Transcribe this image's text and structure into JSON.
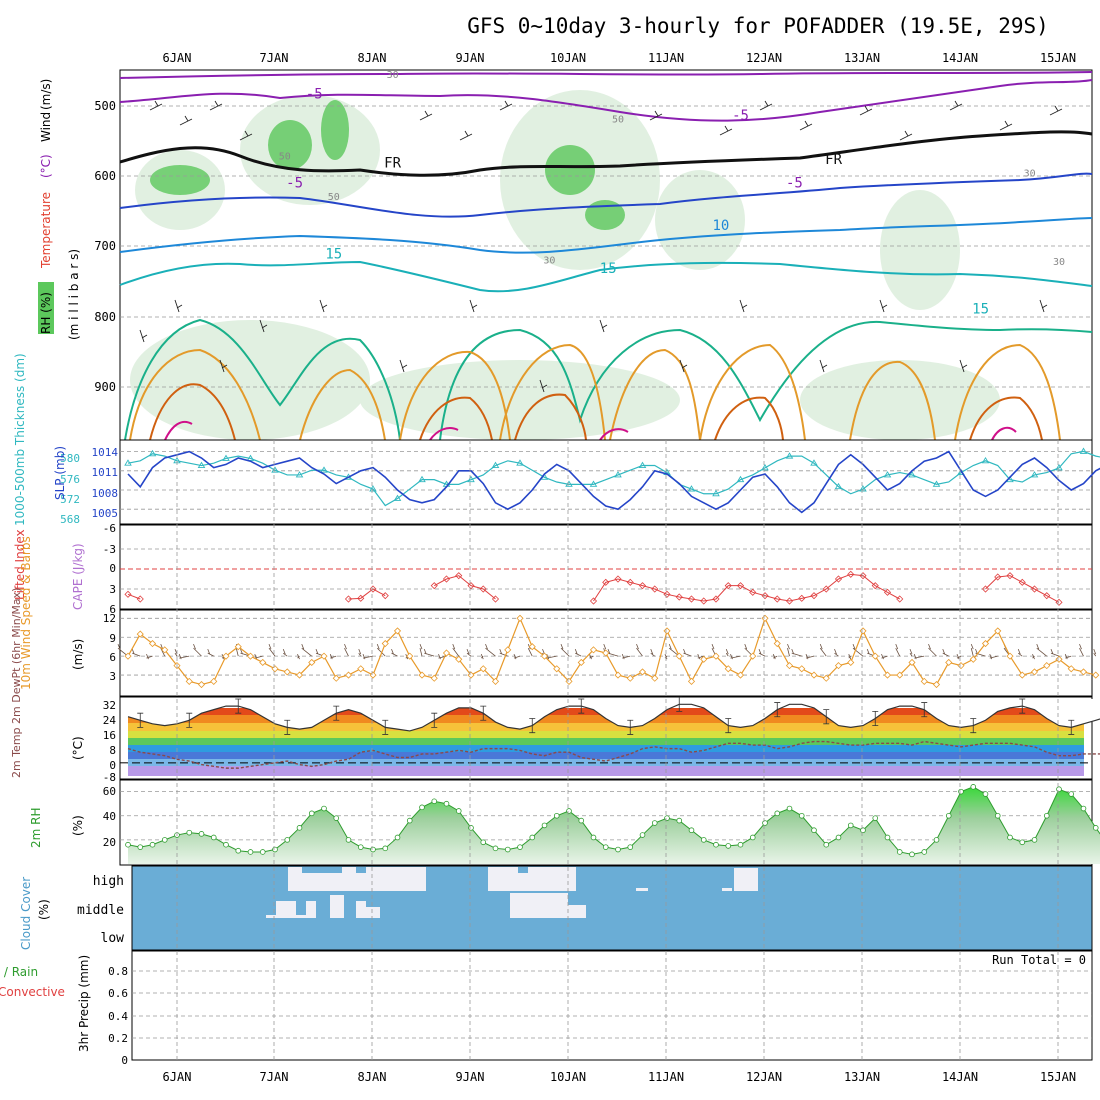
{
  "title": "GFS 0~10day 3-hourly for POFADDER (19.5E, 29S)",
  "days": [
    "6JAN",
    "7JAN",
    "8JAN",
    "9JAN",
    "10JAN",
    "11JAN",
    "12JAN",
    "13JAN",
    "14JAN",
    "15JAN"
  ],
  "colors": {
    "rh_green": "#5cc85c",
    "slp": "#2545c8",
    "thickness": "#30b8c0",
    "lifted": "#e04040",
    "wind_speed": "#e89a2a",
    "rh2m": "#2e9c2e",
    "cloud": "#6aadd6",
    "dewpoint": "#8a4a4a"
  },
  "chart_data": [
    {
      "id": "upper",
      "type": "heatmap",
      "ylabel_parts": [
        "RH (%)",
        "Temperature",
        "(°C)",
        "Wind",
        "(m/s)"
      ],
      "ylabel_millibars": "(m i l l i b a r s)",
      "yticks": [
        500,
        600,
        700,
        800,
        900
      ],
      "ylim": [
        1000,
        450
      ],
      "contour_labels": [
        {
          "text": "-5",
          "day": 1.4,
          "p": 492
        },
        {
          "text": "-5",
          "day": 5.75,
          "p": 524
        },
        {
          "text": "FR",
          "day": 2.2,
          "p": 595
        },
        {
          "text": "FR",
          "day": 6.7,
          "p": 590
        },
        {
          "text": "-5",
          "day": 1.2,
          "p": 625
        },
        {
          "text": "-5",
          "day": 6.3,
          "p": 625
        },
        {
          "text": "10",
          "day": 5.55,
          "p": 688
        },
        {
          "text": "15",
          "day": 1.6,
          "p": 730
        },
        {
          "text": "15",
          "day": 4.4,
          "p": 752
        },
        {
          "text": "15",
          "day": 8.2,
          "p": 812
        },
        {
          "text": "30",
          "day": 2.2,
          "p": 462
        },
        {
          "text": "50",
          "day": 4.5,
          "p": 528
        },
        {
          "text": "50",
          "day": 1.1,
          "p": 583
        },
        {
          "text": "50",
          "day": 1.6,
          "p": 643
        },
        {
          "text": "30",
          "day": 3.8,
          "p": 738
        },
        {
          "text": "30",
          "day": 8.7,
          "p": 608
        },
        {
          "text": "30",
          "day": 9.0,
          "p": 740
        }
      ]
    },
    {
      "id": "slp",
      "type": "line",
      "ylabel_left": "1000-500mb Thickness (dm)",
      "ylabel_right": "SLP (mb)",
      "thickness_ticks": [
        568,
        572,
        576,
        580
      ],
      "slp_ticks": [
        1005,
        1008,
        1011,
        1014
      ],
      "series": [
        {
          "name": "Thickness",
          "values": [
            578.5,
            579,
            580.5,
            580,
            579,
            578.5,
            578,
            578.5,
            579.5,
            580,
            579.5,
            578.5,
            577,
            576,
            576,
            577,
            577,
            576,
            575.5,
            574,
            573,
            569.5,
            571,
            573,
            575,
            575,
            574,
            574,
            575,
            576,
            578,
            579,
            578.5,
            577,
            575.5,
            574.5,
            574,
            574,
            574,
            575,
            576,
            577,
            578,
            578,
            576.5,
            574,
            573,
            572,
            572,
            573,
            575,
            576,
            577.5,
            579,
            580,
            580,
            578.5,
            576,
            573.5,
            572,
            573,
            575,
            576,
            576.5,
            576,
            575,
            574,
            574.5,
            576.5,
            578,
            579,
            578,
            575,
            574.5,
            576,
            576.5,
            577.5,
            580.5,
            581,
            580,
            579.5,
            578.5
          ]
        },
        {
          "name": "SLP",
          "values": [
            1010.5,
            1008.5,
            1011.5,
            1013,
            1013.5,
            1014,
            1013,
            1011.5,
            1012,
            1013,
            1012.5,
            1011.5,
            1012,
            1012.5,
            1013,
            1011.5,
            1010.5,
            1009,
            1010,
            1011,
            1011.5,
            1010,
            1008,
            1006.5,
            1006,
            1006.5,
            1008.5,
            1011,
            1011,
            1009,
            1006,
            1005,
            1006,
            1008,
            1010.5,
            1012,
            1011,
            1009,
            1007,
            1005.5,
            1005,
            1006.5,
            1008.5,
            1011,
            1010.5,
            1009,
            1007,
            1006,
            1005,
            1006,
            1008,
            1010,
            1010.5,
            1008.5,
            1006,
            1004.5,
            1006,
            1009,
            1012,
            1013.5,
            1012,
            1010,
            1008,
            1009,
            1011,
            1012.5,
            1013,
            1014,
            1011,
            1008,
            1007,
            1008,
            1010,
            1012,
            1013,
            1011.5,
            1009.5,
            1008,
            1009,
            1011,
            1012
          ]
        }
      ],
      "ylim_thickness": [
        566,
        583
      ],
      "ylim_slp": [
        1003,
        1015.5
      ]
    },
    {
      "id": "lifted",
      "type": "line",
      "ylabel_left": "Lifted Index",
      "ylabel_right": "CAPE (J/kg)",
      "yticks": [
        -6,
        -3,
        0,
        3,
        6
      ],
      "ylim": [
        -6,
        6
      ],
      "segments": [
        {
          "start_index": 0,
          "values": [
            3.8,
            4.5
          ]
        },
        {
          "start_index": 18,
          "values": [
            4.5,
            4.4,
            3.0,
            4.0
          ]
        },
        {
          "start_index": 25,
          "values": [
            2.5,
            1.5,
            1.0,
            2.5,
            3.0,
            4.5
          ]
        },
        {
          "start_index": 38,
          "values": [
            4.8,
            2.0,
            1.5,
            2.0,
            2.5,
            3.0,
            3.8,
            4.2,
            4.5,
            4.8,
            4.5,
            2.5,
            2.5,
            3.5,
            4.0,
            4.5,
            4.8,
            4.4,
            4.0,
            3.0,
            1.5,
            0.8,
            1.0,
            2.5,
            3.5,
            4.5
          ]
        },
        {
          "start_index": 70,
          "values": [
            3.0,
            1.2,
            1.0,
            2.0,
            3.0,
            4.0,
            5.0
          ]
        }
      ]
    },
    {
      "id": "wind10m",
      "type": "line",
      "ylabel_left": "10m Wind Speed & Barbs",
      "unit": "(m/s)",
      "yticks": [
        3,
        6,
        9,
        12
      ],
      "ylim": [
        0,
        13
      ],
      "values": [
        6,
        9.5,
        8,
        7,
        4.5,
        2,
        1.5,
        2,
        6,
        7.5,
        6,
        5,
        4,
        3.5,
        3,
        5,
        6,
        2.5,
        3,
        4,
        3,
        8,
        10,
        6,
        3,
        2.5,
        6.5,
        5.5,
        3,
        4,
        2,
        7,
        12,
        7.5,
        6,
        4,
        2,
        5,
        7,
        6.5,
        3,
        2.5,
        3.5,
        2.5,
        10,
        6,
        2,
        5.5,
        6,
        4,
        3,
        6,
        12,
        8,
        4.5,
        4,
        3,
        2.5,
        4.5,
        5,
        10,
        6,
        3,
        3,
        5,
        2,
        1.5,
        5,
        4.5,
        5.5,
        8,
        10,
        6,
        3,
        3.5,
        4.5,
        5.5,
        4,
        3.5,
        3
      ]
    },
    {
      "id": "temp2m",
      "type": "area",
      "ylabel_left": "2m Temp 2m DewPt (6hr Min/Max)",
      "unit": "(°C)",
      "yticks": [
        -8,
        0,
        8,
        16,
        24,
        32
      ],
      "ylim": [
        -8,
        36
      ],
      "temperature": [
        26,
        24,
        22,
        21,
        22,
        24,
        28,
        30,
        32,
        32,
        30,
        26,
        22,
        20,
        19,
        20,
        24,
        28,
        30,
        28,
        24,
        20,
        19,
        18,
        20,
        24,
        28,
        31,
        31,
        28,
        23,
        20,
        19,
        21,
        26,
        30,
        32,
        32,
        30,
        25,
        21,
        20,
        21,
        25,
        30,
        33,
        33,
        31,
        26,
        21,
        20,
        21,
        25,
        30,
        33,
        33,
        31,
        26,
        21,
        20,
        21,
        25,
        30,
        32,
        32,
        30,
        25,
        21,
        20,
        21,
        24,
        29,
        31,
        32,
        30,
        25,
        21,
        20,
        22,
        24,
        26
      ],
      "dewpoint": [
        8,
        6,
        5,
        4,
        2,
        1,
        -1,
        -2,
        -3,
        -3,
        -2,
        -1,
        0,
        1,
        -1,
        -2,
        -1,
        1,
        2,
        6,
        7,
        5,
        3,
        3,
        5,
        5,
        6,
        7,
        6,
        8,
        8,
        8,
        7,
        5,
        4,
        6,
        6,
        3,
        2,
        1,
        3,
        5,
        8,
        9,
        8,
        8,
        6,
        7,
        9,
        11,
        11,
        10,
        10,
        8,
        9,
        11,
        12,
        12,
        11,
        10,
        10,
        11,
        11,
        11,
        10,
        12,
        11,
        10,
        9,
        10,
        11,
        11,
        11,
        10,
        9,
        6,
        4,
        4,
        5,
        5,
        5
      ]
    },
    {
      "id": "rh2m",
      "type": "area",
      "ylabel_left": "2m RH",
      "unit": "(%)",
      "yticks": [
        20,
        40,
        60
      ],
      "ylim": [
        0,
        68
      ],
      "values": [
        16,
        14,
        16,
        20,
        24,
        26,
        25,
        22,
        16,
        11,
        10,
        10,
        12,
        20,
        30,
        42,
        46,
        38,
        20,
        14,
        12,
        13,
        22,
        36,
        47,
        52,
        50,
        44,
        30,
        18,
        13,
        12,
        14,
        22,
        32,
        40,
        44,
        36,
        22,
        14,
        12,
        14,
        24,
        34,
        38,
        36,
        28,
        20,
        16,
        15,
        16,
        22,
        34,
        42,
        46,
        40,
        28,
        16,
        22,
        32,
        28,
        38,
        22,
        10,
        8,
        10,
        20,
        40,
        60,
        64,
        58,
        40,
        22,
        18,
        20,
        40,
        62,
        58,
        46,
        30,
        16
      ]
    },
    {
      "id": "cloud",
      "type": "heatmap",
      "ylabel_left": "Cloud Cover",
      "unit": "(%)",
      "layers": [
        "high",
        "middle",
        "low"
      ]
    },
    {
      "id": "precip",
      "type": "bar",
      "ylabel_left": "Total / Rain",
      "ylabel_left2": "Convective",
      "ylabel": "3hr Precip (mm)",
      "yticks": [
        0,
        0.2,
        0.4,
        0.6,
        0.8
      ],
      "ylim": [
        0,
        1.0
      ],
      "run_total": "Run Total = 0",
      "values": []
    }
  ]
}
